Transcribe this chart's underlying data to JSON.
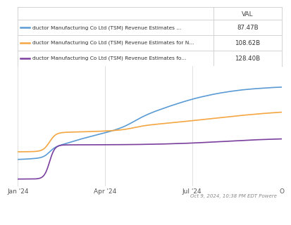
{
  "legend_labels": [
    "ductor Manufacturing Co Ltd (TSM) Revenue Estimates ...",
    "ductor Manufacturing Co Ltd (TSM) Revenue Estimates for N...",
    "ductor Manufacturing Co Ltd (TSM) Revenue Estimates fo..."
  ],
  "legend_vals": [
    "87.47B",
    "108.62B",
    "128.40B"
  ],
  "colors": [
    "#5b9bd5",
    "#f4a642",
    "#7b3f9e"
  ],
  "x_ticks": [
    "Jan '24",
    "Apr '24",
    "Jul '24",
    "O"
  ],
  "footnote": "Oct 9, 2024, 10:38 PM EDT Powere",
  "plot_bg": "#ffffff",
  "grid_color": "#e0e0e0",
  "text_color": "#555555",
  "legend_divider_color": "#cccccc"
}
